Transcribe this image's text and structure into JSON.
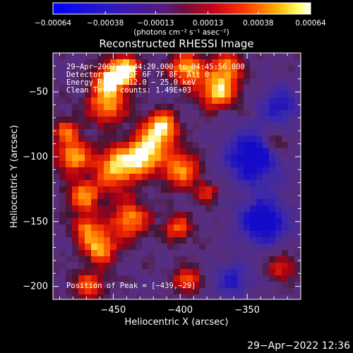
{
  "chart_data": {
    "type": "heatmap",
    "title": "Reconstructed RHESSI Image",
    "xlabel": "Heliocentric X (arcsec)",
    "ylabel": "Heliocentric Y (arcsec)",
    "xlim": [
      -495,
      -310
    ],
    "ylim": [
      -210,
      -20
    ],
    "x_ticks": [
      -450,
      -400,
      -350
    ],
    "y_ticks": [
      -50,
      -100,
      -150,
      -200
    ],
    "x_tick_labels": [
      "−450",
      "−400",
      "−350"
    ],
    "y_tick_labels": [
      "−50",
      "−100",
      "−150",
      "−200"
    ],
    "colorbar": {
      "ticks": [
        -0.00064,
        -0.00038,
        -0.00013,
        0.00013,
        0.00038,
        0.00064
      ],
      "tick_labels": [
        "−0.00064",
        "−0.00038",
        "−0.00013",
        "0.00013",
        "0.00038",
        "0.00064"
      ],
      "unit_label": "(photons cm⁻² s⁻¹ asec⁻²)",
      "colormap": "blue-purple-red-orange-yellow-white"
    },
    "annotations": {
      "time": "29−Apr−2007 04:44:20.000 to 04:45:56.000",
      "detectors": "Detectors: 3F 5F 6F 7F 8F, Att 0",
      "energy": "Energy Range: 12.0 − 25.0 keV",
      "method": "Clean    Total counts: 1.49E+03",
      "peak": "Position of Peak = [−439,−29]"
    }
  },
  "footer": {
    "timestamp": "29−Apr−2022 12:36"
  }
}
